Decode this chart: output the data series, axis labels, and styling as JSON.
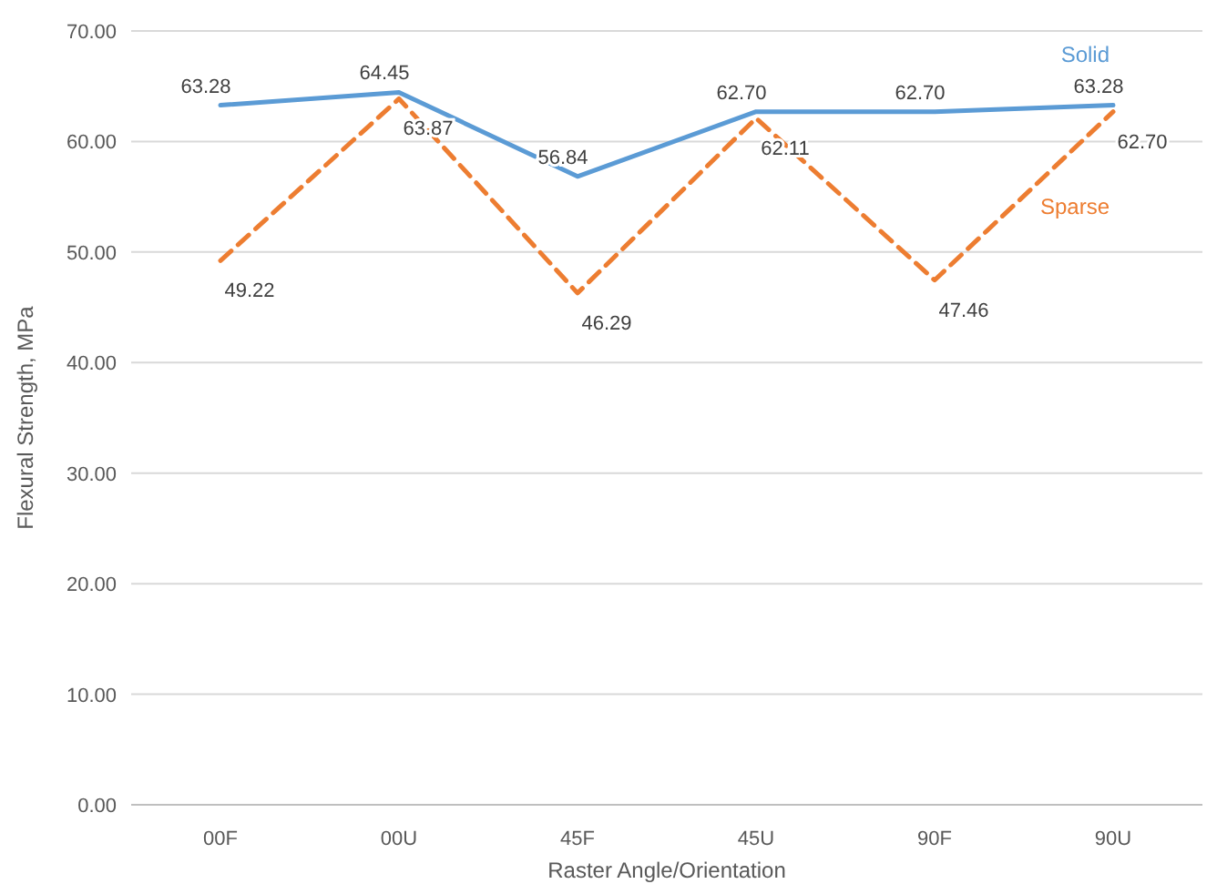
{
  "chart_data": {
    "type": "line",
    "xlabel": "Raster Angle/Orientation",
    "ylabel": "Flexural Strength, MPa",
    "categories": [
      "00F",
      "00U",
      "45F",
      "45U",
      "90F",
      "90U"
    ],
    "series": [
      {
        "name": "Solid",
        "color": "#5b9bd5",
        "line_style": "solid",
        "values": [
          63.28,
          64.45,
          56.84,
          62.7,
          62.7,
          63.28
        ],
        "value_labels": [
          "63.28",
          "64.45",
          "56.84",
          "62.70",
          "62.70",
          "63.28"
        ]
      },
      {
        "name": "Sparse",
        "color": "#ed7d31",
        "line_style": "dashed",
        "values": [
          49.22,
          63.87,
          46.29,
          62.11,
          47.46,
          62.7
        ],
        "value_labels": [
          "49.22",
          "63.87",
          "46.29",
          "62.11",
          "47.46",
          "62.70"
        ]
      }
    ],
    "ylim": [
      0,
      70
    ],
    "yticks": [
      {
        "value": 0,
        "label": "0.00"
      },
      {
        "value": 10,
        "label": "10.00"
      },
      {
        "value": 20,
        "label": "20.00"
      },
      {
        "value": 30,
        "label": "30.00"
      },
      {
        "value": 40,
        "label": "40.00"
      },
      {
        "value": 50,
        "label": "50.00"
      },
      {
        "value": 60,
        "label": "60.00"
      },
      {
        "value": 70,
        "label": "70.00"
      }
    ],
    "grid": "y",
    "marker": "none"
  }
}
